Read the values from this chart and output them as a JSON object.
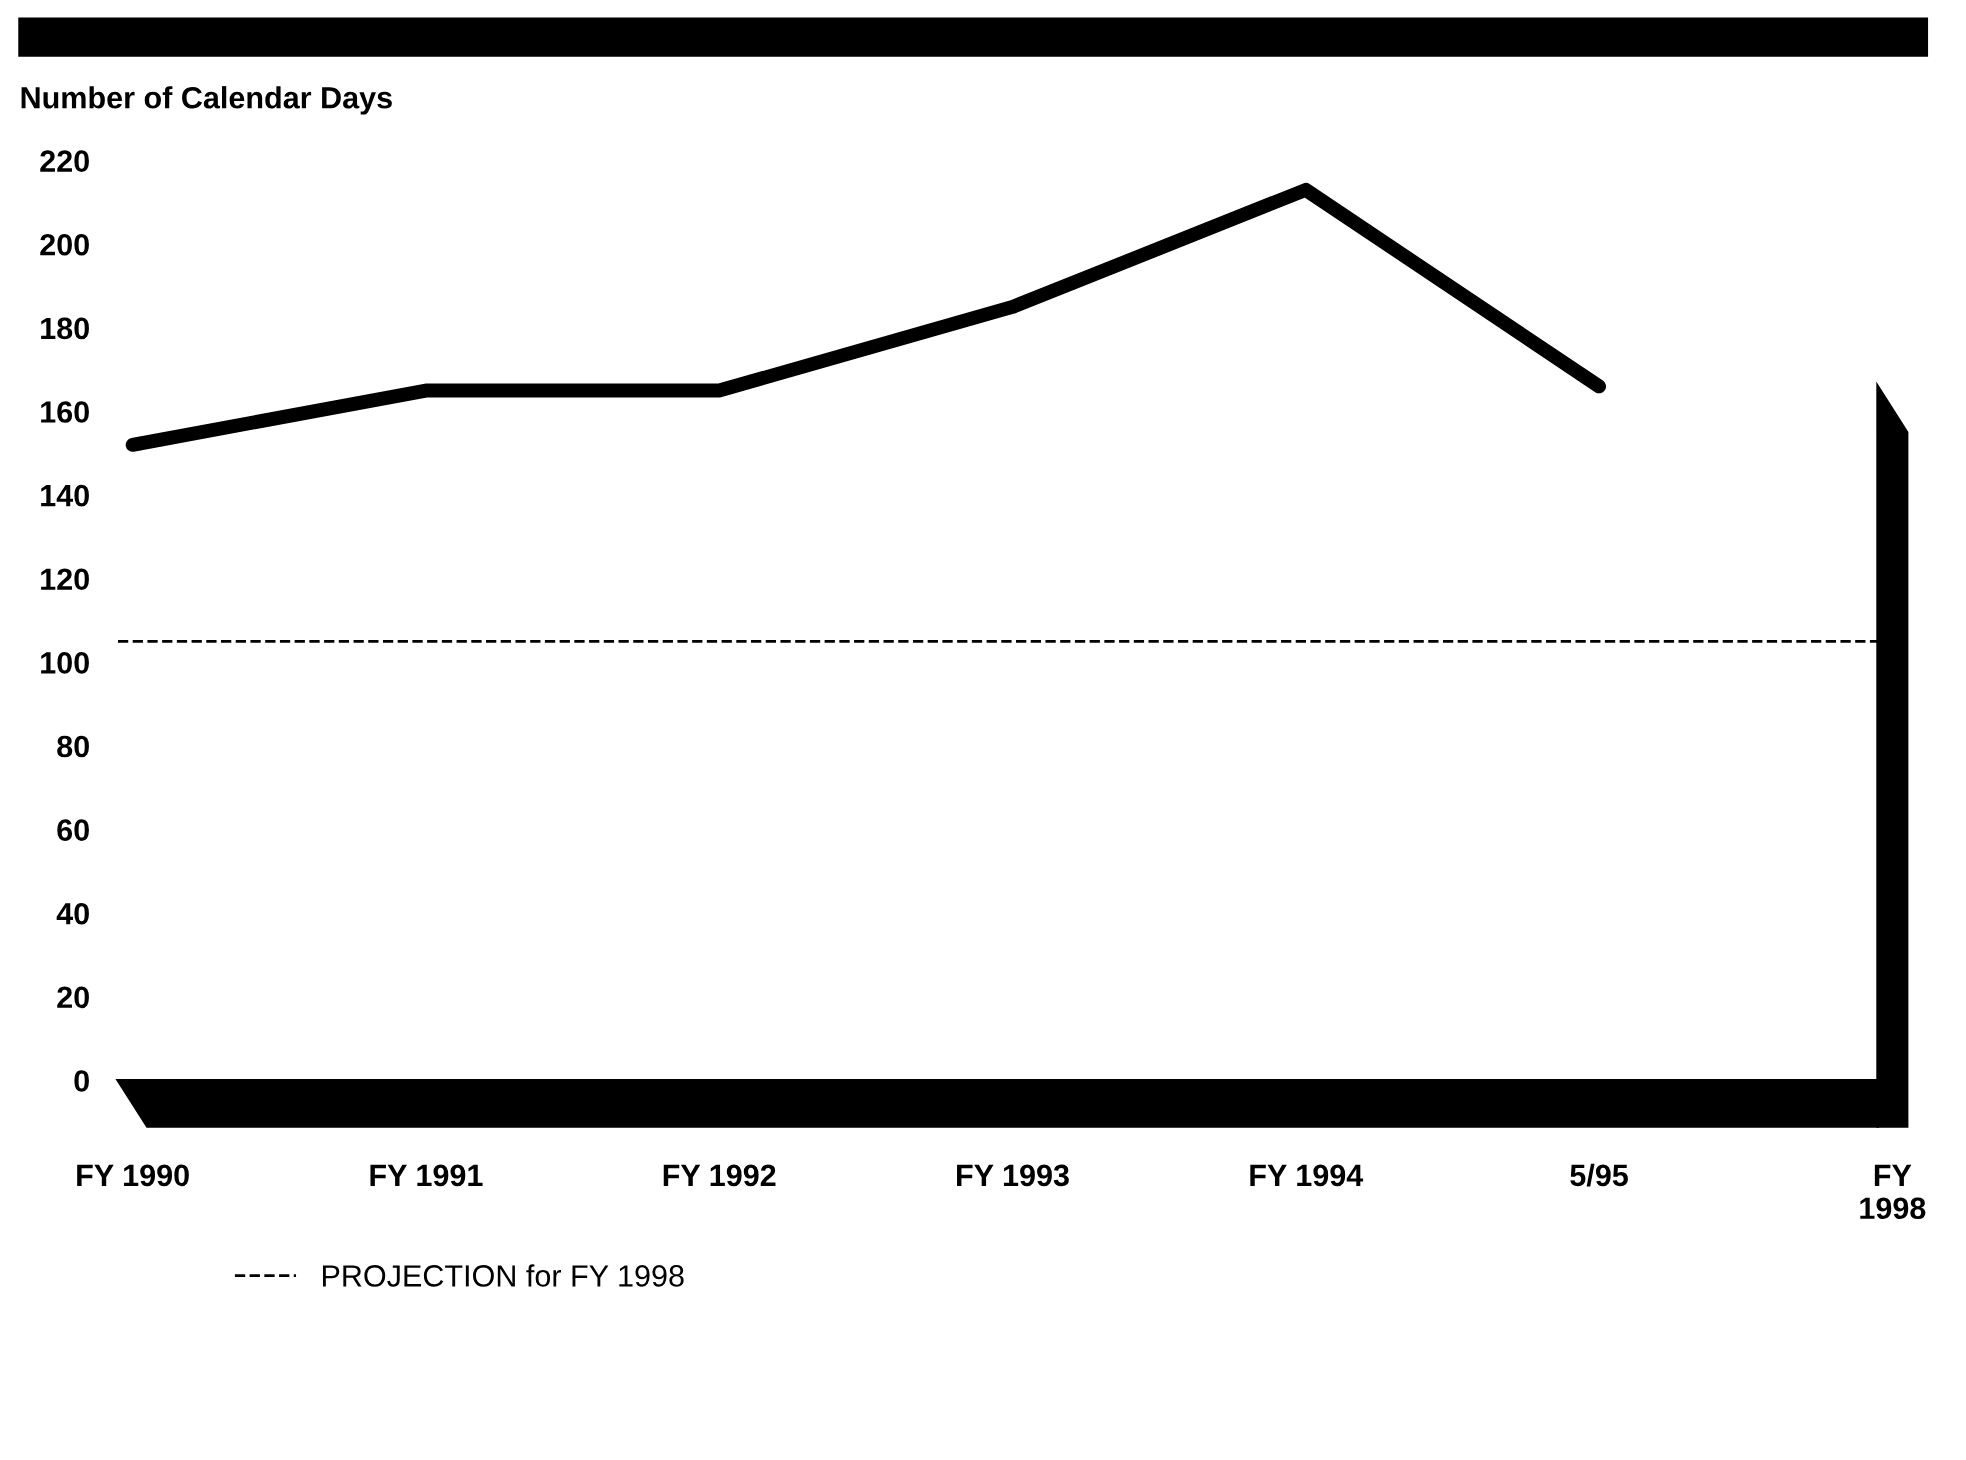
{
  "chart_data": {
    "type": "line",
    "ylabel": "Number of Calendar Days",
    "categories": [
      "FY 1990",
      "FY 1991",
      "FY 1992",
      "FY 1993",
      "FY 1994",
      "5/95",
      "FY\n1998"
    ],
    "series": [
      {
        "color": "#000000",
        "values": [
          152,
          165,
          165,
          185,
          213,
          166,
          null
        ]
      }
    ],
    "ylim": [
      0,
      220
    ],
    "yticks": [
      0,
      20,
      40,
      60,
      80,
      100,
      120,
      140,
      160,
      180,
      200,
      220
    ],
    "ref_lines": [
      {
        "axis": "y",
        "value": 105,
        "label": "PROJECTION for FY 1998",
        "color": "#000000",
        "line_style": "dashed"
      }
    ],
    "legend": "bottom",
    "grid": false,
    "marker": "none",
    "line_style": "solid"
  }
}
